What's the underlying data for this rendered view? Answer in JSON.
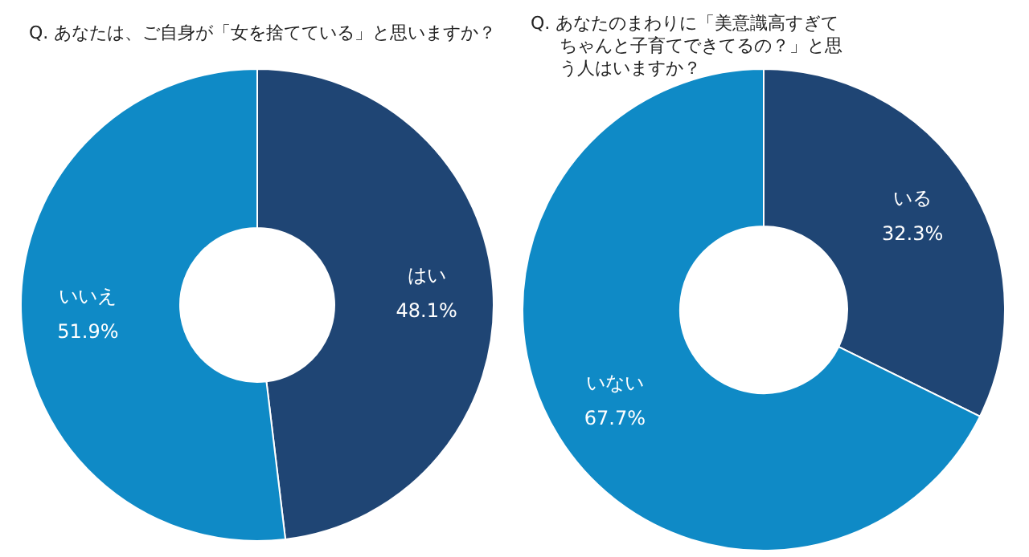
{
  "chart_data": [
    {
      "type": "donut",
      "title": "Q. あなたは、ご自身が「女を捨てている」と思いますか？",
      "categories": [
        "はい",
        "いいえ"
      ],
      "values": [
        48.1,
        51.9
      ],
      "colors": [
        "#1f4574",
        "#0f8ac6"
      ],
      "value_labels": [
        "48.1%",
        "51.9%"
      ]
    },
    {
      "type": "donut",
      "title": "Q. あなたのまわりに「美意識高すぎてちゃんと子育てできてるの？」と思う人はいますか？",
      "categories": [
        "いる",
        "いない"
      ],
      "values": [
        32.3,
        67.7
      ],
      "colors": [
        "#1f4574",
        "#0f8ac6"
      ],
      "value_labels": [
        "32.3%",
        "67.7%"
      ]
    }
  ]
}
